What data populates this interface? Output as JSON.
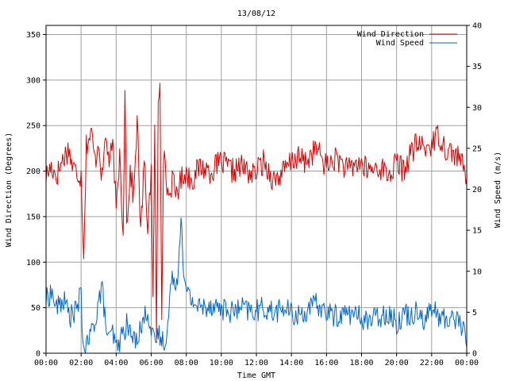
{
  "chart_data": {
    "type": "line",
    "title": "13/08/12",
    "xlabel": "Time GMT",
    "ylabel_left": "Wind Direction (Degrees)",
    "ylabel_right": "Wind Speed (m/s)",
    "x_ticks": [
      "00:00",
      "02:00",
      "04:00",
      "06:00",
      "08:00",
      "10:00",
      "12:00",
      "14:00",
      "16:00",
      "18:00",
      "20:00",
      "22:00",
      "00:00"
    ],
    "xlim_hours": [
      0,
      24
    ],
    "y_left": {
      "lim": [
        0,
        360
      ],
      "ticks": [
        "0",
        "50",
        "100",
        "150",
        "200",
        "250",
        "300",
        "350"
      ]
    },
    "y_right": {
      "lim": [
        0,
        40
      ],
      "ticks": [
        "0",
        "5",
        "10",
        "15",
        "20",
        "25",
        "30",
        "35",
        "40"
      ]
    },
    "grid": true,
    "legend_position": "top-right",
    "series": [
      {
        "name": "Wind Direction",
        "axis": "left",
        "color": "#dd0000",
        "keypoints": [
          [
            0,
            195
          ],
          [
            0.3,
            205
          ],
          [
            0.6,
            195
          ],
          [
            1.0,
            215
          ],
          [
            1.3,
            225
          ],
          [
            1.5,
            205
          ],
          [
            1.7,
            200
          ],
          [
            2.0,
            195
          ],
          [
            2.15,
            110
          ],
          [
            2.3,
            230
          ],
          [
            2.6,
            240
          ],
          [
            2.8,
            210
          ],
          [
            3.0,
            235
          ],
          [
            3.2,
            190
          ],
          [
            3.4,
            240
          ],
          [
            3.6,
            210
          ],
          [
            3.8,
            225
          ],
          [
            3.9,
            200
          ],
          [
            4.0,
            150
          ],
          [
            4.2,
            220
          ],
          [
            4.4,
            130
          ],
          [
            4.5,
            300
          ],
          [
            4.6,
            140
          ],
          [
            4.8,
            200
          ],
          [
            5.0,
            170
          ],
          [
            5.2,
            260
          ],
          [
            5.4,
            130
          ],
          [
            5.6,
            210
          ],
          [
            5.8,
            140
          ],
          [
            6.0,
            200
          ],
          [
            6.1,
            50
          ],
          [
            6.2,
            250
          ],
          [
            6.3,
            10
          ],
          [
            6.4,
            280
          ],
          [
            6.5,
            300
          ],
          [
            6.6,
            50
          ],
          [
            6.7,
            220
          ],
          [
            6.8,
            200
          ],
          [
            7.0,
            170
          ],
          [
            7.2,
            190
          ],
          [
            7.4,
            175
          ],
          [
            7.6,
            185
          ],
          [
            7.9,
            200
          ],
          [
            8.3,
            190
          ],
          [
            8.8,
            205
          ],
          [
            9.4,
            200
          ],
          [
            10.0,
            210
          ],
          [
            10.6,
            200
          ],
          [
            11.2,
            205
          ],
          [
            11.8,
            195
          ],
          [
            12.4,
            210
          ],
          [
            13.0,
            190
          ],
          [
            13.6,
            200
          ],
          [
            14.2,
            215
          ],
          [
            14.8,
            210
          ],
          [
            15.4,
            225
          ],
          [
            16.0,
            205
          ],
          [
            16.6,
            215
          ],
          [
            17.2,
            200
          ],
          [
            17.8,
            210
          ],
          [
            18.4,
            200
          ],
          [
            19.0,
            205
          ],
          [
            19.6,
            195
          ],
          [
            20.0,
            210
          ],
          [
            20.4,
            200
          ],
          [
            20.8,
            220
          ],
          [
            21.2,
            230
          ],
          [
            21.6,
            225
          ],
          [
            22.0,
            230
          ],
          [
            22.4,
            240
          ],
          [
            22.8,
            225
          ],
          [
            23.2,
            220
          ],
          [
            23.6,
            215
          ],
          [
            24.0,
            190
          ]
        ]
      },
      {
        "name": "Wind Speed",
        "axis": "right",
        "color": "#0066cc",
        "keypoints": [
          [
            0,
            6.5
          ],
          [
            0.3,
            7.5
          ],
          [
            0.6,
            5.5
          ],
          [
            1.0,
            6.5
          ],
          [
            1.4,
            4.5
          ],
          [
            1.8,
            5.5
          ],
          [
            2.0,
            7.5
          ],
          [
            2.1,
            1.0
          ],
          [
            2.3,
            0.5
          ],
          [
            2.5,
            2.0
          ],
          [
            2.8,
            4.0
          ],
          [
            3.0,
            6.5
          ],
          [
            3.2,
            8.0
          ],
          [
            3.4,
            3.5
          ],
          [
            3.6,
            1.5
          ],
          [
            3.8,
            2.5
          ],
          [
            4.0,
            0.5
          ],
          [
            4.3,
            2.0
          ],
          [
            4.6,
            3.5
          ],
          [
            5.0,
            1.5
          ],
          [
            5.4,
            3.0
          ],
          [
            5.8,
            5.5
          ],
          [
            6.0,
            2.5
          ],
          [
            6.2,
            1.0
          ],
          [
            6.4,
            2.5
          ],
          [
            6.6,
            1.5
          ],
          [
            6.9,
            2.0
          ],
          [
            7.1,
            8.0
          ],
          [
            7.3,
            9.5
          ],
          [
            7.5,
            8.5
          ],
          [
            7.7,
            17.5
          ],
          [
            7.9,
            8.0
          ],
          [
            8.3,
            6.5
          ],
          [
            8.8,
            5.5
          ],
          [
            9.4,
            6.0
          ],
          [
            10.0,
            5.5
          ],
          [
            10.6,
            5.0
          ],
          [
            11.2,
            5.5
          ],
          [
            11.8,
            5.0
          ],
          [
            12.4,
            5.5
          ],
          [
            13.0,
            5.0
          ],
          [
            13.6,
            5.5
          ],
          [
            14.2,
            4.5
          ],
          [
            14.8,
            5.0
          ],
          [
            15.4,
            6.0
          ],
          [
            16.0,
            5.0
          ],
          [
            16.6,
            4.5
          ],
          [
            17.2,
            5.0
          ],
          [
            17.8,
            4.5
          ],
          [
            18.4,
            4.0
          ],
          [
            19.0,
            4.5
          ],
          [
            19.6,
            5.0
          ],
          [
            20.0,
            3.5
          ],
          [
            20.4,
            5.0
          ],
          [
            20.8,
            4.5
          ],
          [
            21.2,
            5.5
          ],
          [
            21.6,
            4.0
          ],
          [
            22.0,
            5.5
          ],
          [
            22.4,
            4.5
          ],
          [
            22.8,
            4.0
          ],
          [
            23.2,
            4.5
          ],
          [
            23.6,
            4.0
          ],
          [
            24.0,
            1.5
          ]
        ]
      }
    ]
  }
}
